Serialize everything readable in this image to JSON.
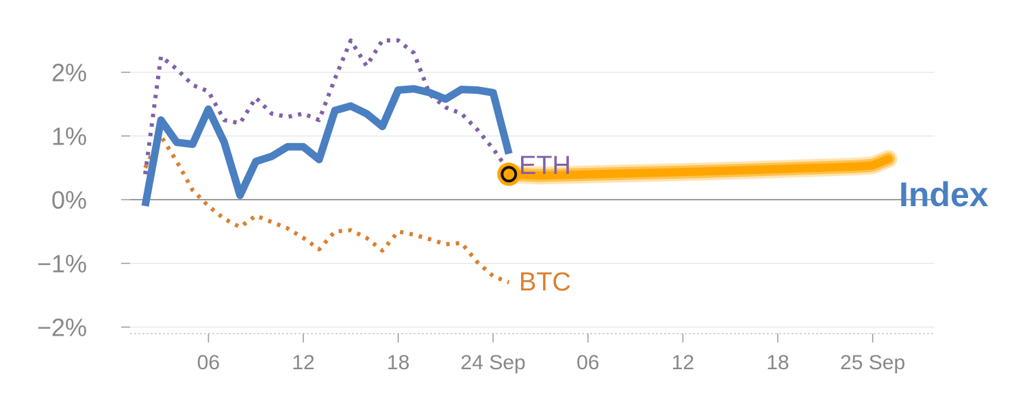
{
  "chart_data": {
    "type": "line",
    "title": "",
    "xlabel": "",
    "ylabel": "",
    "ylim": [
      -2.05,
      2.3
    ],
    "y_ticks": [
      {
        "value": 2,
        "label": "2%"
      },
      {
        "value": 1,
        "label": "1%"
      },
      {
        "value": 0,
        "label": "0%"
      },
      {
        "value": -1,
        "label": "−1%"
      },
      {
        "value": -2,
        "label": "−2%"
      }
    ],
    "x_ticks": [
      {
        "x": 4,
        "label": "06"
      },
      {
        "x": 10,
        "label": "12"
      },
      {
        "x": 16,
        "label": "18"
      },
      {
        "x": 22,
        "label": "24 Sep"
      },
      {
        "x": 28,
        "label": "06"
      },
      {
        "x": 34,
        "label": "12"
      },
      {
        "x": 40,
        "label": "18"
      },
      {
        "x": 46,
        "label": "25 Sep"
      }
    ],
    "grid": true,
    "zero_line": true,
    "series": [
      {
        "name": "ETH",
        "style": "dotted",
        "color": "#8060a8",
        "x": [
          0,
          1,
          2,
          3,
          4,
          5,
          6,
          7,
          8,
          9,
          10,
          11,
          12,
          13,
          14,
          15,
          16,
          17,
          18,
          19,
          20,
          21,
          22,
          23
        ],
        "y": [
          0.4,
          2.25,
          2.05,
          1.8,
          1.7,
          1.25,
          1.2,
          1.6,
          1.35,
          1.3,
          1.35,
          1.25,
          1.9,
          2.5,
          2.1,
          2.5,
          2.5,
          2.3,
          1.65,
          1.45,
          1.35,
          1.1,
          0.8,
          0.45
        ]
      },
      {
        "name": "BTC",
        "style": "dotted",
        "color": "#d98030",
        "x": [
          0,
          1,
          2,
          3,
          4,
          5,
          6,
          7,
          8,
          9,
          10,
          11,
          12,
          13,
          14,
          15,
          16,
          17,
          18,
          19,
          20,
          21,
          22,
          23
        ],
        "y": [
          0.5,
          1.0,
          0.6,
          0.15,
          -0.1,
          -0.3,
          -0.43,
          -0.25,
          -0.35,
          -0.45,
          -0.6,
          -0.78,
          -0.5,
          -0.48,
          -0.6,
          -0.8,
          -0.5,
          -0.55,
          -0.62,
          -0.7,
          -0.68,
          -0.98,
          -1.2,
          -1.3
        ]
      },
      {
        "name": "Index",
        "style": "solid",
        "color": "#4a7fc1",
        "x": [
          0,
          1,
          2,
          3,
          4,
          5,
          6,
          7,
          8,
          9,
          10,
          11,
          12,
          13,
          14,
          15,
          16,
          17,
          18,
          19,
          20,
          21,
          22,
          23
        ],
        "y": [
          -0.1,
          1.25,
          0.9,
          0.87,
          1.42,
          0.9,
          0.07,
          0.6,
          0.68,
          0.83,
          0.83,
          0.63,
          1.4,
          1.47,
          1.35,
          1.15,
          1.72,
          1.74,
          1.68,
          1.58,
          1.73,
          1.72,
          1.68,
          0.72
        ]
      },
      {
        "name": "Index forecast",
        "style": "band",
        "color": "#ffa500",
        "x": [
          23,
          25,
          30,
          35,
          40,
          45,
          46,
          47
        ],
        "y": [
          0.4,
          0.38,
          0.41,
          0.44,
          0.48,
          0.52,
          0.54,
          0.64
        ]
      }
    ],
    "marker": {
      "x": 23,
      "y": 0.4,
      "color": "#ffa500"
    },
    "labels": {
      "eth": "ETH",
      "btc": "BTC",
      "index": "Index"
    },
    "colors": {
      "eth": "#8060a8",
      "btc": "#d98030",
      "index": "#4a7fc1",
      "forecast": "#ffa500",
      "grid": "#e6e6e6",
      "zero_line": "#777777",
      "tick_text": "#888888"
    }
  }
}
